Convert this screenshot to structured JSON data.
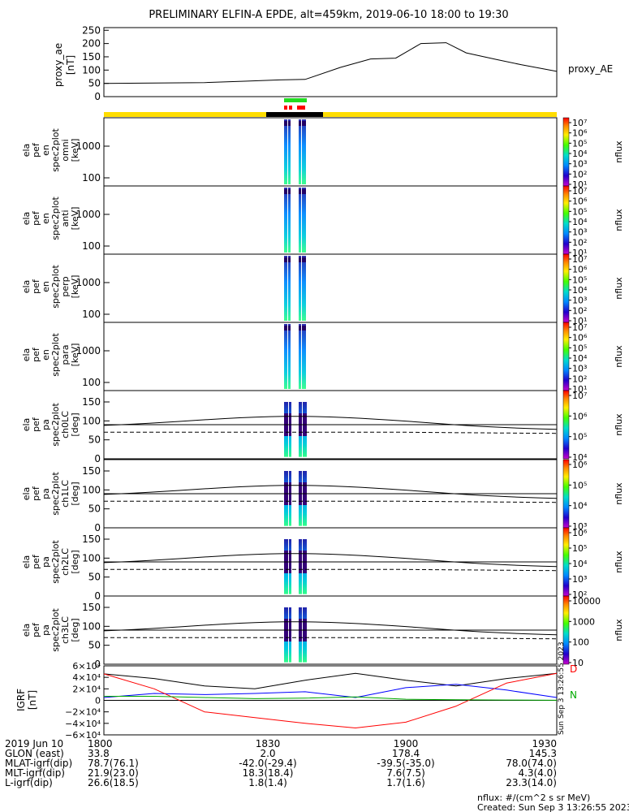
{
  "title": "PRELIMINARY ELFIN-A EPDE, alt=459km, 2019-06-10 18:00 to 19:30",
  "ae_panel": {
    "ylabel": "proxy_ae\n[nT]",
    "legend": "proxy_AE",
    "ticks": [
      "250",
      "200",
      "150",
      "100",
      "50",
      "0"
    ],
    "ylim": [
      0,
      260
    ]
  },
  "spec_panels": [
    {
      "ylabel": [
        "ela",
        "pef",
        "en",
        "spec2plot",
        "omni",
        "[keV]"
      ],
      "ticks": [
        "1000",
        "100"
      ]
    },
    {
      "ylabel": [
        "ela",
        "pef",
        "en",
        "spec2plot",
        "anti",
        "[keV]"
      ],
      "ticks": [
        "1000",
        "100"
      ]
    },
    {
      "ylabel": [
        "ela",
        "pef",
        "en",
        "spec2plot",
        "perp",
        "[keV]"
      ],
      "ticks": [
        "1000",
        "100"
      ]
    },
    {
      "ylabel": [
        "ela",
        "pef",
        "en",
        "spec2plot",
        "para",
        "[keV]"
      ],
      "ticks": [
        "1000",
        "100"
      ]
    }
  ],
  "pa_panels": [
    {
      "ylabel": [
        "ela",
        "pef",
        "pa",
        "spec2plot",
        "ch0LC",
        "[deg]"
      ],
      "ticks": [
        "150",
        "100",
        "50",
        "0"
      ]
    },
    {
      "ylabel": [
        "ela",
        "pef",
        "pa",
        "spec2plot",
        "ch1LC",
        "[deg]"
      ],
      "ticks": [
        "150",
        "100",
        "50",
        "0"
      ]
    },
    {
      "ylabel": [
        "ela",
        "pef",
        "pa",
        "spec2plot",
        "ch2LC",
        "[deg]"
      ],
      "ticks": [
        "150",
        "100",
        "50",
        "0"
      ]
    },
    {
      "ylabel": [
        "ela",
        "pef",
        "pa",
        "spec2plot",
        "ch3LC",
        "[deg]"
      ],
      "ticks": [
        "150",
        "100",
        "50",
        "0"
      ]
    }
  ],
  "colorbars": {
    "unit": "nflux",
    "spec_labels": [
      "10⁷",
      "10⁶",
      "10⁵",
      "10⁴",
      "10³",
      "10²",
      "10¹"
    ],
    "pa0_labels": [
      "10⁷",
      "10⁶",
      "10⁵",
      "10⁴"
    ],
    "pa1_labels": [
      "10⁶",
      "10⁵",
      "10⁴",
      "10³"
    ],
    "pa2_labels": [
      "10⁶",
      "10⁵",
      "10⁴",
      "10³",
      "10²"
    ],
    "pa3_labels": [
      "10000",
      "1000",
      "100",
      "10"
    ]
  },
  "igrf_panel": {
    "ylabel": "IGRF\n[nT]",
    "ticks": [
      "6×10⁴",
      "4×10⁴",
      "2×10⁴",
      "0",
      "−2×10⁴",
      "−4×10⁴",
      "−6×10⁴"
    ],
    "ylim": [
      -60000,
      60000
    ],
    "labels": {
      "D": "D",
      "N": "N"
    },
    "side_text": "Sun Sep 3 13:26:55 2023",
    "colors": {
      "black": "#000000",
      "blue": "#0000ff",
      "red": "#ff0000",
      "green": "#00aa00"
    }
  },
  "footer": {
    "rows": [
      {
        "label": "2019 Jun 10",
        "values": [
          "1800",
          "1830",
          "1900",
          "1930"
        ]
      },
      {
        "label": "GLON (east)",
        "values": [
          "33.8",
          "2.0",
          "178.4",
          "145.3"
        ]
      },
      {
        "label": "MLAT-igrf(dip)",
        "values": [
          "78.7(76.1)",
          "-42.0(-29.4)",
          "-39.5(-35.0)",
          "78.0(74.0)"
        ]
      },
      {
        "label": "MLT-igrf(dip)",
        "values": [
          "21.9(23.0)",
          "18.3(18.4)",
          "7.6(7.5)",
          "4.3(4.0)"
        ]
      },
      {
        "label": "L-igrf(dip)",
        "values": [
          "26.6(18.5)",
          "1.8(1.4)",
          "1.7(1.6)",
          "23.3(14.0)"
        ]
      }
    ],
    "note1": "nflux: #/(cm^2 s sr MeV)",
    "note2": "Created: Sun Sep  3 13:26:55 2023"
  },
  "chart_data": [
    {
      "type": "line",
      "title": "PRELIMINARY ELFIN-A EPDE, alt=459km, 2019-06-10 18:00 to 19:30",
      "ylabel": "proxy_ae [nT]",
      "ylim": [
        0,
        260
      ],
      "x_minutes": [
        0,
        20,
        28,
        35,
        40,
        47,
        53,
        58,
        63,
        68,
        72,
        78,
        83,
        90
      ],
      "series": [
        {
          "name": "proxy_AE",
          "values": [
            50,
            53,
            58,
            63,
            65,
            110,
            142,
            145,
            200,
            203,
            165,
            140,
            120,
            95
          ]
        }
      ]
    },
    {
      "type": "line",
      "ylabel": "IGRF [nT]",
      "ylim": [
        -60000,
        60000
      ],
      "x_minutes": [
        0,
        10,
        20,
        30,
        40,
        50,
        60,
        70,
        80,
        90
      ],
      "series": [
        {
          "name": "black",
          "values": [
            46000,
            38000,
            25000,
            20000,
            35000,
            47000,
            35000,
            25000,
            38000,
            47000
          ]
        },
        {
          "name": "blue",
          "values": [
            5000,
            12000,
            10000,
            12000,
            15000,
            5000,
            22000,
            28000,
            18000,
            5000
          ]
        },
        {
          "name": "red",
          "values": [
            46000,
            20000,
            -20000,
            -30000,
            -40000,
            -48000,
            -38000,
            -10000,
            30000,
            47000
          ]
        },
        {
          "name": "green",
          "values": [
            7000,
            7000,
            5000,
            3000,
            4000,
            6000,
            2000,
            1000,
            500,
            100
          ]
        }
      ]
    }
  ]
}
